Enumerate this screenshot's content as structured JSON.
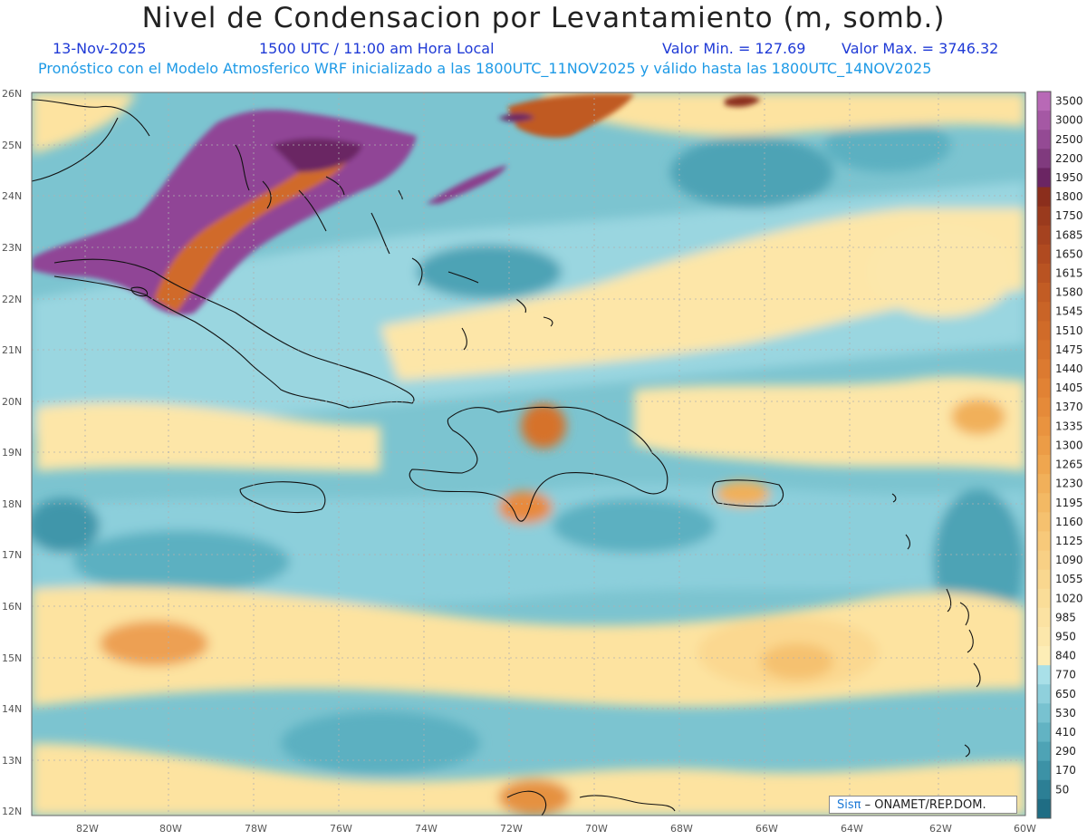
{
  "header": {
    "title": "Nivel de Condensacion por Levantamiento (m, somb.)",
    "date": "13-Nov-2025",
    "time": "1500 UTC / 11:00 am Hora Local",
    "min": "Valor Min. = 127.69",
    "max": "Valor Max. = 3746.32",
    "model_line": "Pronóstico con el Modelo Atmosferico WRF inicializado a las 1800UTC_11NOV2025 y válido hasta las  1800UTC_14NOV2025"
  },
  "map": {
    "lat_labels": [
      "26N",
      "25N",
      "24N",
      "23N",
      "22N",
      "21N",
      "20N",
      "19N",
      "18N",
      "17N",
      "16N",
      "15N",
      "14N",
      "13N",
      "12N"
    ],
    "lon_labels": [
      "82W",
      "80W",
      "78W",
      "76W",
      "74W",
      "72W",
      "70W",
      "68W",
      "66W",
      "64W",
      "62W",
      "60W"
    ],
    "colors": {
      "low_teal": "#5fb5c5",
      "light_teal": "#a6dde6",
      "yellow": "#fde7a0",
      "orange": "#e88a3c",
      "brown": "#a84a1e",
      "purple": "#8a3e8c"
    }
  },
  "colorbar": {
    "levels": [
      {
        "label": "3500",
        "color": "#b869b6"
      },
      {
        "label": "3000",
        "color": "#a558a4"
      },
      {
        "label": "2500",
        "color": "#944a94"
      },
      {
        "label": "2200",
        "color": "#803a7e"
      },
      {
        "label": "1950",
        "color": "#6b2563"
      },
      {
        "label": "1800",
        "color": "#8b2e1c"
      },
      {
        "label": "1750",
        "color": "#9a3a1d"
      },
      {
        "label": "1685",
        "color": "#a5421f"
      },
      {
        "label": "1650",
        "color": "#b04a20"
      },
      {
        "label": "1615",
        "color": "#b95322"
      },
      {
        "label": "1580",
        "color": "#c25c24"
      },
      {
        "label": "1545",
        "color": "#c96427"
      },
      {
        "label": "1510",
        "color": "#d06b29"
      },
      {
        "label": "1475",
        "color": "#d6722c"
      },
      {
        "label": "1440",
        "color": "#dc7a30"
      },
      {
        "label": "1405",
        "color": "#e18234"
      },
      {
        "label": "1370",
        "color": "#e58a39"
      },
      {
        "label": "1335",
        "color": "#e9933f"
      },
      {
        "label": "1300",
        "color": "#ec9c46"
      },
      {
        "label": "1265",
        "color": "#efa64f"
      },
      {
        "label": "1230",
        "color": "#f1b05a"
      },
      {
        "label": "1195",
        "color": "#f3b964"
      },
      {
        "label": "1160",
        "color": "#f5c16f"
      },
      {
        "label": "1125",
        "color": "#f7c97a"
      },
      {
        "label": "1090",
        "color": "#f8d085"
      },
      {
        "label": "1055",
        "color": "#f9d78f"
      },
      {
        "label": "1020",
        "color": "#fadd98"
      },
      {
        "label": "985",
        "color": "#fbe2a2"
      },
      {
        "label": "950",
        "color": "#fce7ab"
      },
      {
        "label": "840",
        "color": "#fdedb6"
      },
      {
        "label": "770",
        "color": "#a9e0e8"
      },
      {
        "label": "650",
        "color": "#8fd0dc"
      },
      {
        "label": "530",
        "color": "#78c2d0"
      },
      {
        "label": "410",
        "color": "#62b3c3"
      },
      {
        "label": "290",
        "color": "#4ea3b5"
      },
      {
        "label": "170",
        "color": "#3c92a6"
      },
      {
        "label": "50",
        "color": "#2c7f95"
      },
      {
        "label": "",
        "color": "#1f6d84"
      }
    ]
  },
  "credit": {
    "brand": "Sisπ",
    "text": " – ONAMET/REP.DOM."
  }
}
